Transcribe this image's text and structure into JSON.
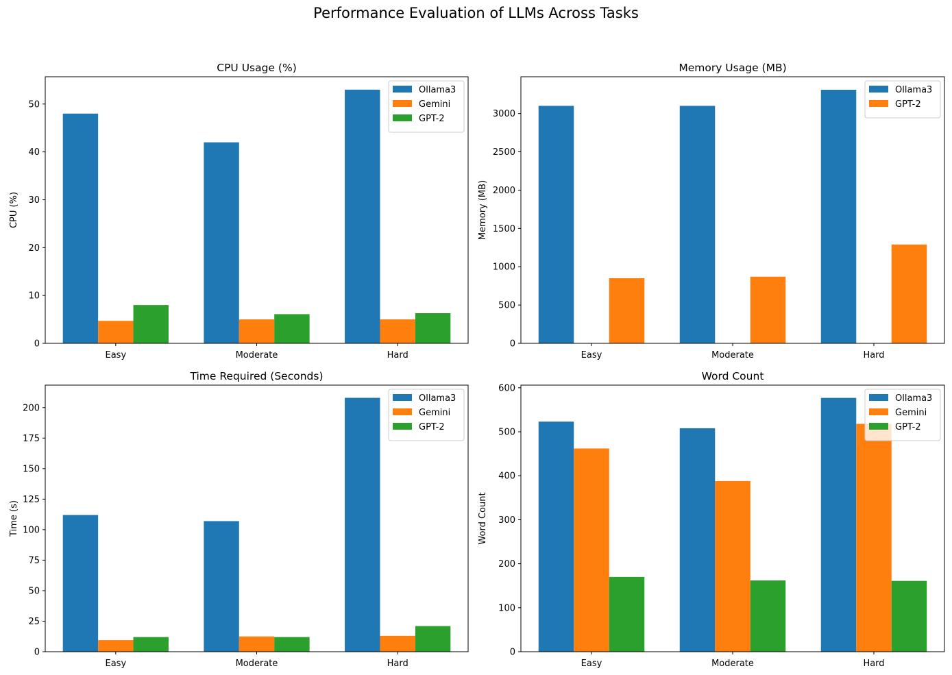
{
  "figure": {
    "title": "Performance Evaluation of LLMs Across Tasks"
  },
  "colors": {
    "Ollama3": "#1f77b4",
    "Gemini": "#ff7f0e",
    "GPT-2": "#2ca02c"
  },
  "chart_data": [
    {
      "type": "bar",
      "title": "CPU Usage (%)",
      "xlabel": "",
      "ylabel": "CPU (%)",
      "categories": [
        "Easy",
        "Moderate",
        "Hard"
      ],
      "ylim": [
        0,
        55.7
      ],
      "yticks": [
        0,
        10,
        20,
        30,
        40,
        50
      ],
      "legend_position": "top-right",
      "series": [
        {
          "name": "Ollama3",
          "values": [
            48.0,
            42.0,
            53.0
          ]
        },
        {
          "name": "Gemini",
          "values": [
            4.7,
            5.0,
            5.0
          ]
        },
        {
          "name": "GPT-2",
          "values": [
            8.0,
            6.1,
            6.3
          ]
        }
      ]
    },
    {
      "type": "bar",
      "title": "Memory Usage (MB)",
      "xlabel": "",
      "ylabel": "Memory (MB)",
      "categories": [
        "Easy",
        "Moderate",
        "Hard"
      ],
      "ylim": [
        0,
        3480
      ],
      "yticks": [
        0,
        500,
        1000,
        1500,
        2000,
        2500,
        3000
      ],
      "legend_position": "top-right",
      "note_slots": 3,
      "series": [
        {
          "name": "Ollama3",
          "slot": 0,
          "values": [
            3100,
            3100,
            3310
          ]
        },
        {
          "name": "GPT-2",
          "slot": 2,
          "color": "#ff7f0e",
          "values": [
            850,
            870,
            1290
          ]
        }
      ]
    },
    {
      "type": "bar",
      "title": "Time Required (Seconds)",
      "xlabel": "",
      "ylabel": "Time (s)",
      "categories": [
        "Easy",
        "Moderate",
        "Hard"
      ],
      "ylim": [
        0,
        218.4
      ],
      "yticks": [
        0,
        25,
        50,
        75,
        100,
        125,
        150,
        175,
        200
      ],
      "legend_position": "top-right",
      "series": [
        {
          "name": "Ollama3",
          "values": [
            112,
            107,
            208
          ]
        },
        {
          "name": "Gemini",
          "values": [
            9.5,
            12.5,
            13
          ]
        },
        {
          "name": "GPT-2",
          "values": [
            12,
            12,
            21
          ]
        }
      ]
    },
    {
      "type": "bar",
      "title": "Word Count",
      "xlabel": "",
      "ylabel": "Word Count",
      "categories": [
        "Easy",
        "Moderate",
        "Hard"
      ],
      "ylim": [
        0,
        606
      ],
      "yticks": [
        0,
        100,
        200,
        300,
        400,
        500,
        600
      ],
      "legend_position": "top-right",
      "series": [
        {
          "name": "Ollama3",
          "values": [
            523,
            508,
            577
          ]
        },
        {
          "name": "Gemini",
          "values": [
            462,
            388,
            518
          ]
        },
        {
          "name": "GPT-2",
          "values": [
            170,
            162,
            161
          ]
        }
      ]
    }
  ]
}
